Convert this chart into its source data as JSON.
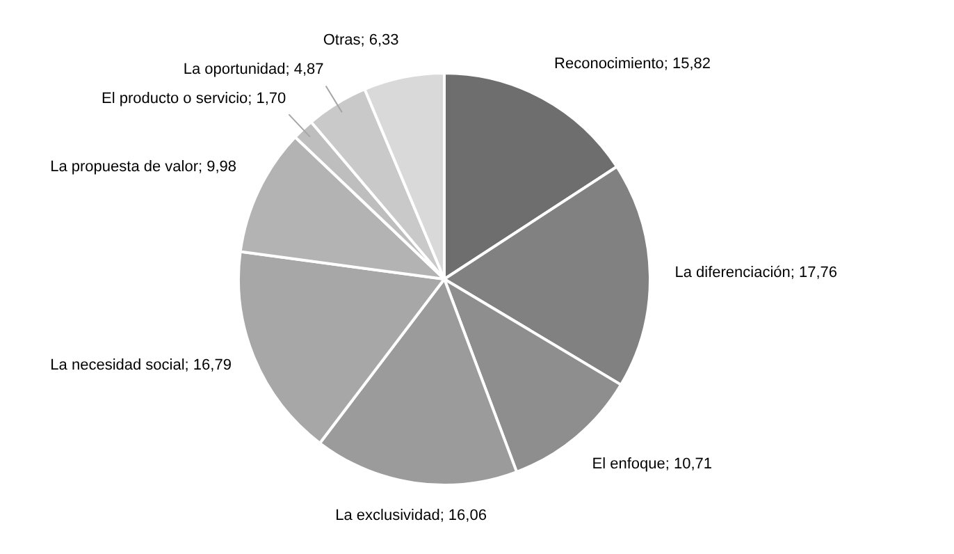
{
  "chart_data": {
    "type": "pie",
    "categories": [
      "Reconocimiento",
      "La diferenciación",
      "El enfoque",
      "La exclusividad",
      "La necesidad social",
      "La propuesta de valor",
      "El producto o servicio",
      "La oportunidad",
      "Otras"
    ],
    "values": [
      15.82,
      17.76,
      10.71,
      16.06,
      16.79,
      9.98,
      1.7,
      4.87,
      6.33
    ],
    "value_labels": [
      "15,82",
      "17,76",
      "10,71",
      "16,06",
      "16,79",
      "9,98",
      "1,70",
      "4,87",
      "6,33"
    ],
    "colors": [
      "#6e6e6e",
      "#818181",
      "#8e8e8e",
      "#9b9b9b",
      "#a7a7a7",
      "#b3b3b3",
      "#bebebe",
      "#c9c9c9",
      "#d9d9d9"
    ],
    "data_labels": true,
    "legend": false
  }
}
